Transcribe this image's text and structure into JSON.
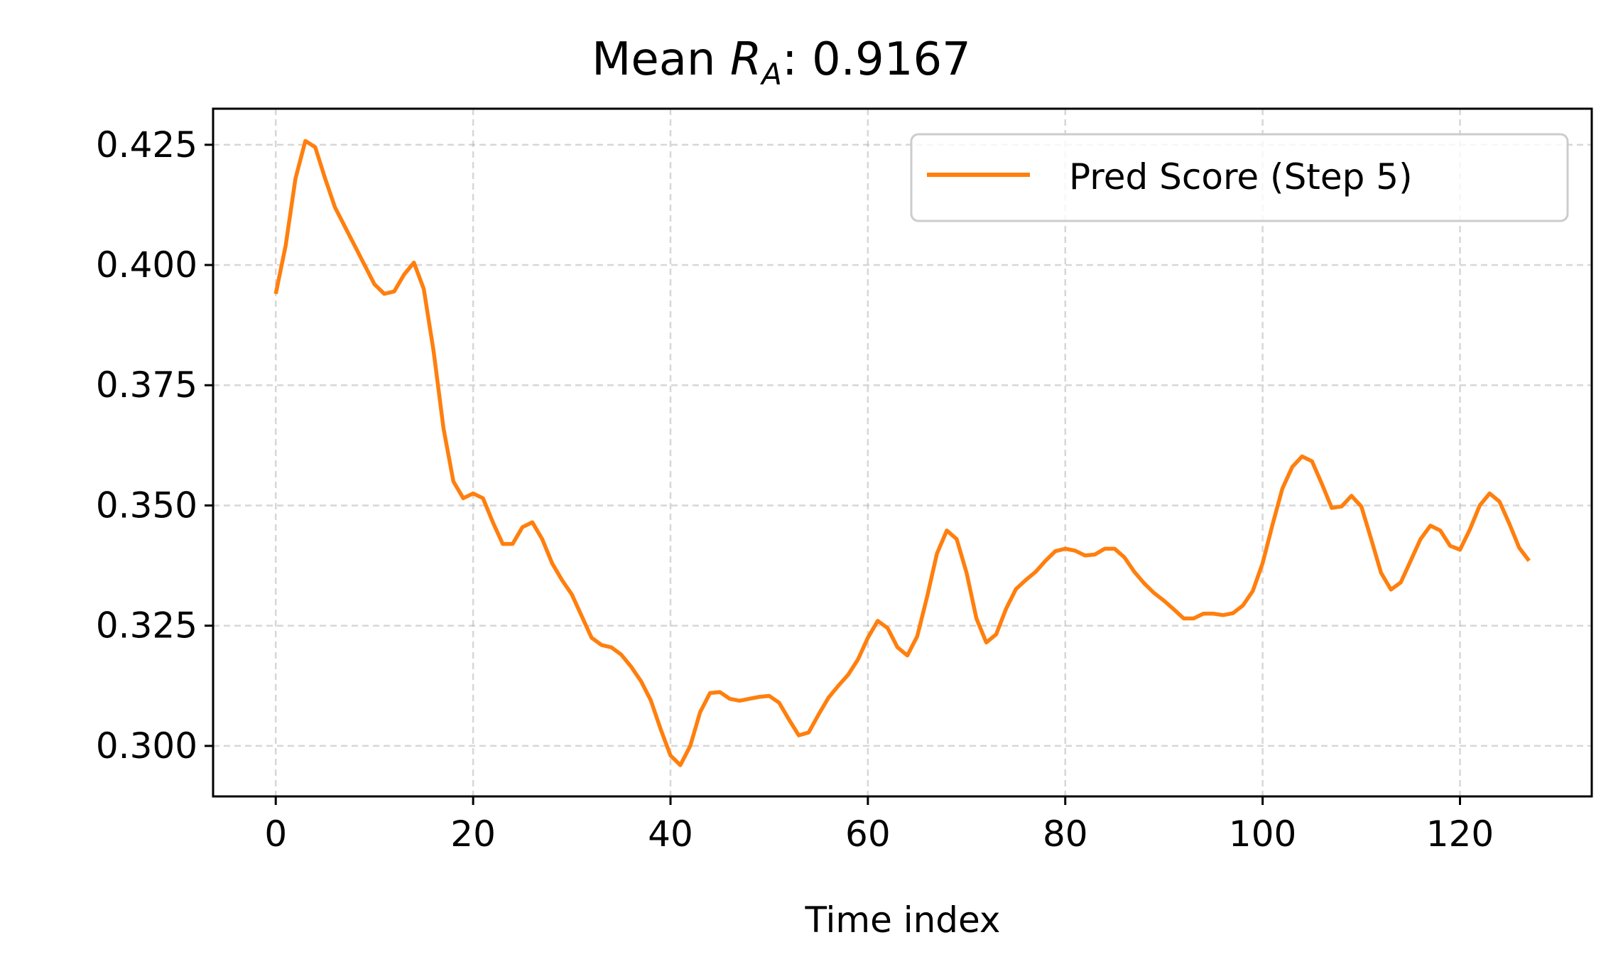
{
  "chart_data": {
    "type": "line",
    "title_prefix": "Mean ",
    "title_math_base": "R",
    "title_math_sub": "A",
    "title_suffix": ": 0.9167",
    "xlabel": "Time index",
    "ylabel": "",
    "xlim": [
      -6.35,
      133.35
    ],
    "ylim": [
      0.2895,
      0.4325
    ],
    "xticks": [
      0,
      20,
      40,
      60,
      80,
      100,
      120
    ],
    "yticks": [
      0.3,
      0.325,
      0.35,
      0.375,
      0.4,
      0.425
    ],
    "xtick_labels": [
      "0",
      "20",
      "40",
      "60",
      "80",
      "100",
      "120"
    ],
    "ytick_labels": [
      "0.300",
      "0.325",
      "0.350",
      "0.375",
      "0.400",
      "0.425"
    ],
    "grid": true,
    "grid_style": "dashed",
    "legend_position": "top-right",
    "series": [
      {
        "name": "Pred Score (Step 5)",
        "color": "#ff7f0e",
        "x": [
          0,
          1,
          2,
          3,
          4,
          5,
          6,
          7,
          8,
          9,
          10,
          11,
          12,
          13,
          14,
          15,
          16,
          17,
          18,
          19,
          20,
          21,
          22,
          23,
          24,
          25,
          26,
          27,
          28,
          29,
          30,
          31,
          32,
          33,
          34,
          35,
          36,
          37,
          38,
          39,
          40,
          41,
          42,
          43,
          44,
          45,
          46,
          47,
          48,
          49,
          50,
          51,
          52,
          53,
          54,
          55,
          56,
          57,
          58,
          59,
          60,
          61,
          62,
          63,
          64,
          65,
          66,
          67,
          68,
          69,
          70,
          71,
          72,
          73,
          74,
          75,
          76,
          77,
          78,
          79,
          80,
          81,
          82,
          83,
          84,
          85,
          86,
          87,
          88,
          89,
          90,
          91,
          92,
          93,
          94,
          95,
          96,
          97,
          98,
          99,
          100,
          101,
          102,
          103,
          104,
          105,
          106,
          107,
          108,
          109,
          110,
          111,
          112,
          113,
          114,
          115,
          116,
          117,
          118,
          119,
          120,
          121,
          122,
          123,
          124,
          125,
          126,
          127
        ],
        "y": [
          0.394,
          0.404,
          0.418,
          0.4258,
          0.4245,
          0.418,
          0.412,
          0.408,
          0.404,
          0.4,
          0.396,
          0.394,
          0.3945,
          0.398,
          0.4005,
          0.395,
          0.382,
          0.366,
          0.355,
          0.3515,
          0.3525,
          0.3515,
          0.3465,
          0.342,
          0.342,
          0.3455,
          0.3465,
          0.343,
          0.338,
          0.3345,
          0.3315,
          0.327,
          0.3225,
          0.321,
          0.3205,
          0.319,
          0.3165,
          0.3135,
          0.3095,
          0.3035,
          0.298,
          0.296,
          0.3,
          0.307,
          0.311,
          0.3112,
          0.3098,
          0.3094,
          0.3098,
          0.3102,
          0.3104,
          0.309,
          0.3055,
          0.3022,
          0.3028,
          0.3065,
          0.31,
          0.3125,
          0.3148,
          0.318,
          0.3225,
          0.326,
          0.3245,
          0.3205,
          0.3188,
          0.3228,
          0.331,
          0.34,
          0.3448,
          0.343,
          0.336,
          0.3265,
          0.3215,
          0.3232,
          0.3285,
          0.3326,
          0.3345,
          0.3362,
          0.3385,
          0.3405,
          0.341,
          0.3406,
          0.3396,
          0.3398,
          0.341,
          0.341,
          0.3392,
          0.3362,
          0.3338,
          0.3318,
          0.3302,
          0.3284,
          0.3265,
          0.3265,
          0.3275,
          0.3275,
          0.3272,
          0.3276,
          0.3292,
          0.3322,
          0.338,
          0.346,
          0.3535,
          0.358,
          0.3602,
          0.3592,
          0.3545,
          0.3495,
          0.3498,
          0.352,
          0.3498,
          0.343,
          0.336,
          0.3325,
          0.334,
          0.3385,
          0.343,
          0.3458,
          0.3448,
          0.3416,
          0.3408,
          0.345,
          0.35,
          0.3525,
          0.3508,
          0.3462,
          0.3412,
          0.3385
        ]
      }
    ]
  }
}
